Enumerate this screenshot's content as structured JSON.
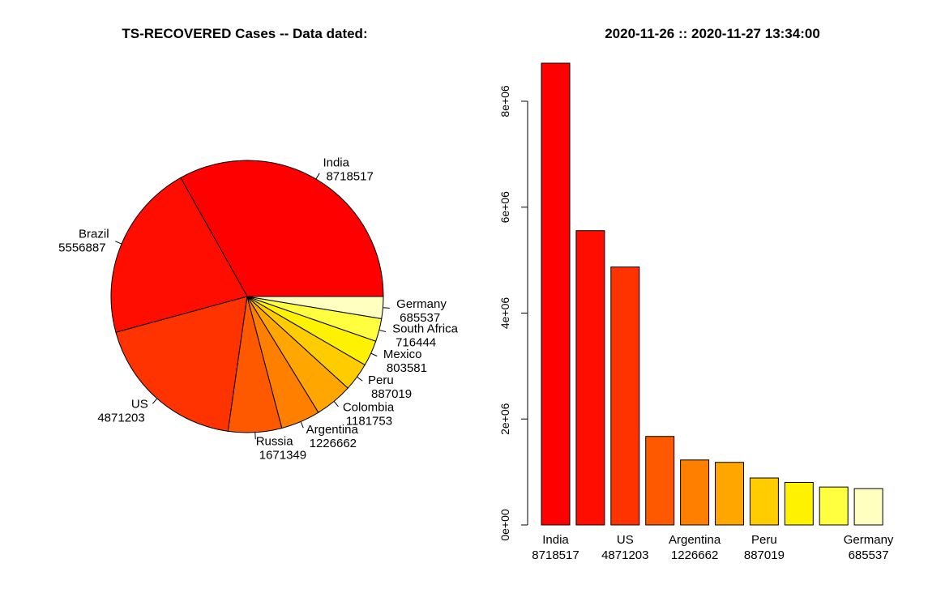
{
  "title_left": "TS-RECOVERED Cases  -- Data dated:",
  "title_right": "2020-11-26  ::  2020-11-27 13:34:00",
  "chart_data": [
    {
      "type": "pie",
      "categories": [
        "India",
        "Brazil",
        "US",
        "Russia",
        "Argentina",
        "Colombia",
        "Peru",
        "Mexico",
        "South Africa",
        "Germany"
      ],
      "values": [
        8718517,
        5556887,
        4871203,
        1671349,
        1226662,
        1181753,
        887019,
        803581,
        716444,
        685537
      ],
      "colors": [
        "#FF0000",
        "#FF0D00",
        "#FF3300",
        "#FF5900",
        "#FF8000",
        "#FFA600",
        "#FFCC00",
        "#FFF200",
        "#FFFF40",
        "#FFFFBF"
      ]
    },
    {
      "type": "bar",
      "categories": [
        "India",
        "Brazil",
        "US",
        "Russia",
        "Argentina",
        "Colombia",
        "Peru",
        "Mexico",
        "South Africa",
        "Germany"
      ],
      "values": [
        8718517,
        5556887,
        4871203,
        1671349,
        1226662,
        1181753,
        887019,
        803581,
        716444,
        685537
      ],
      "colors": [
        "#FF0000",
        "#FF0D00",
        "#FF3300",
        "#FF5900",
        "#FF8000",
        "#FFA600",
        "#FFCC00",
        "#FFF200",
        "#FFFF40",
        "#FFFFBF"
      ],
      "visible_label_indices": [
        0,
        2,
        4,
        6,
        9
      ],
      "ylim": [
        0,
        8718517
      ],
      "yticks": [
        0,
        2000000,
        4000000,
        6000000,
        8000000
      ],
      "ytick_labels": [
        "0e+00",
        "2e+06",
        "4e+06",
        "6e+06",
        "8e+06"
      ]
    }
  ]
}
